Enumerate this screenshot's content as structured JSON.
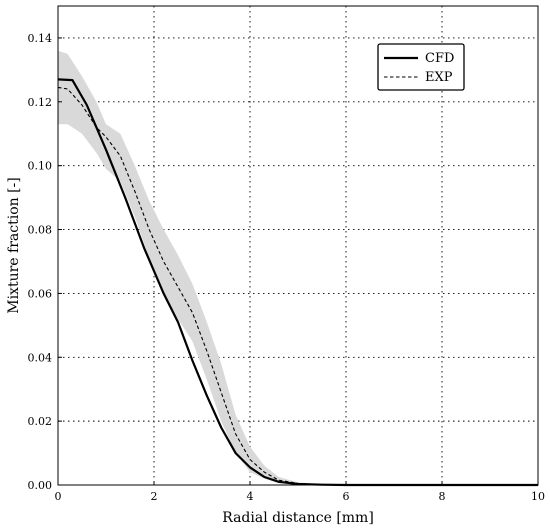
{
  "chart_data": {
    "type": "line",
    "title": "",
    "xlabel": "Radial distance [mm]",
    "ylabel": "Mixture fraction [-]",
    "xlim": [
      0,
      10
    ],
    "ylim": [
      0,
      0.15
    ],
    "xticks": [
      0,
      2,
      4,
      6,
      8,
      10
    ],
    "yticks": [
      0.0,
      0.02,
      0.04,
      0.06,
      0.08,
      0.1,
      0.12,
      0.14
    ],
    "xtick_labels": [
      "0",
      "2",
      "4",
      "6",
      "8",
      "10"
    ],
    "ytick_labels": [
      "0.00",
      "0.02",
      "0.04",
      "0.06",
      "0.08",
      "0.10",
      "0.12",
      "0.14"
    ],
    "grid": true,
    "legend_position": "top-right",
    "series": [
      {
        "name": "CFD",
        "style": "solid",
        "color": "#000000",
        "x": [
          0,
          0.3,
          0.6,
          1.0,
          1.4,
          1.8,
          2.2,
          2.5,
          2.8,
          3.1,
          3.4,
          3.7,
          4.0,
          4.3,
          4.6,
          5.0,
          5.5,
          6.0,
          7.0,
          8.0,
          9.0,
          10.0
        ],
        "y": [
          0.127,
          0.1268,
          0.119,
          0.105,
          0.09,
          0.074,
          0.06,
          0.051,
          0.039,
          0.028,
          0.018,
          0.01,
          0.0055,
          0.0025,
          0.001,
          0.0003,
          0.0001,
          0.0,
          0.0,
          0.0,
          0.0,
          0.0
        ]
      },
      {
        "name": "EXP",
        "style": "dashed",
        "color": "#000000",
        "x": [
          0,
          0.2,
          0.5,
          0.8,
          1.0,
          1.3,
          1.6,
          1.9,
          2.2,
          2.5,
          2.8,
          3.1,
          3.4,
          3.7,
          4.0,
          4.3,
          4.6,
          5.0,
          5.5,
          6.0,
          7.0,
          8.0,
          9.0,
          10.0
        ],
        "y": [
          0.1245,
          0.124,
          0.119,
          0.112,
          0.109,
          0.103,
          0.092,
          0.08,
          0.07,
          0.062,
          0.054,
          0.042,
          0.029,
          0.016,
          0.008,
          0.004,
          0.0015,
          0.0005,
          0.0001,
          0.0,
          0.0,
          0.0,
          0.0,
          0.0
        ]
      }
    ],
    "exp_band": {
      "color": "#d9d9d9",
      "x": [
        0,
        0.2,
        0.5,
        0.8,
        1.0,
        1.3,
        1.6,
        1.9,
        2.2,
        2.5,
        2.8,
        3.1,
        3.4,
        3.7,
        4.0,
        4.3,
        4.6,
        5.0,
        5.5,
        6.0,
        7.0,
        8.0,
        9.0,
        10.0
      ],
      "upper": [
        0.136,
        0.135,
        0.128,
        0.12,
        0.113,
        0.11,
        0.1,
        0.089,
        0.08,
        0.072,
        0.063,
        0.051,
        0.038,
        0.022,
        0.012,
        0.006,
        0.0025,
        0.0008,
        0.0002,
        0.0,
        0.0,
        0.0,
        0.0,
        0.0
      ],
      "lower": [
        0.113,
        0.113,
        0.11,
        0.104,
        0.099,
        0.095,
        0.084,
        0.071,
        0.06,
        0.052,
        0.045,
        0.033,
        0.02,
        0.01,
        0.004,
        0.002,
        0.0005,
        0.0002,
        0.0,
        0.0,
        0.0,
        0.0,
        0.0,
        0.0
      ]
    }
  }
}
